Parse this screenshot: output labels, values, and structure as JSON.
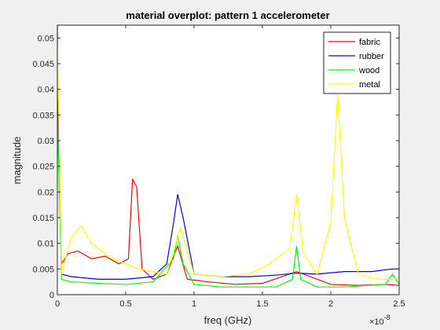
{
  "chart_data": {
    "type": "line",
    "title": "material overplot: pattern 1 accelerometer",
    "xlabel": "freq (GHz)",
    "ylabel": "magnitude",
    "x_exponent_label": "×10",
    "x_exponent": "-8",
    "xlim": [
      0,
      2.5e-08
    ],
    "ylim": [
      0,
      0.0525
    ],
    "x_ticks": [
      0,
      5e-09,
      1e-08,
      1.5e-08,
      2e-08,
      2.5e-08
    ],
    "x_tick_labels": [
      "0",
      "0.5",
      "1",
      "1.5",
      "2",
      "2.5"
    ],
    "y_ticks": [
      0,
      0.005,
      0.01,
      0.015,
      0.02,
      0.025,
      0.03,
      0.035,
      0.04,
      0.045,
      0.05
    ],
    "y_tick_labels": [
      "0",
      "0.005",
      "0.01",
      "0.015",
      "0.02",
      "0.025",
      "0.03",
      "0.035",
      "0.04",
      "0.045",
      "0.05"
    ],
    "grid": false,
    "legend_position": "top-right",
    "series": [
      {
        "name": "fabric",
        "color": "#ff0000",
        "x": [
          0,
          1e-13,
          3e-10,
          8e-10,
          1.5e-09,
          2.5e-09,
          3.5e-09,
          4.5e-09,
          5.2e-09,
          5.5e-09,
          5.8e-09,
          6.2e-09,
          7e-09,
          8e-09,
          8.8e-09,
          9.5e-09,
          1.1e-08,
          1.3e-08,
          1.5e-08,
          1.75e-08,
          2e-08,
          2.2e-08,
          2.4e-08,
          2.5e-08
        ],
        "values": [
          0.0525,
          0.04,
          0.006,
          0.008,
          0.0085,
          0.007,
          0.0075,
          0.006,
          0.007,
          0.0225,
          0.021,
          0.005,
          0.003,
          0.004,
          0.0095,
          0.003,
          0.0025,
          0.002,
          0.0022,
          0.0045,
          0.002,
          0.0018,
          0.002,
          0.0018
        ]
      },
      {
        "name": "rubber",
        "color": "#0000ff",
        "x": [
          0,
          1e-13,
          3e-10,
          1e-09,
          3e-09,
          5e-09,
          7e-09,
          8e-09,
          8.5e-09,
          8.8e-09,
          9.2e-09,
          1e-08,
          1.2e-08,
          1.4e-08,
          1.6e-08,
          1.75e-08,
          1.9e-08,
          2.1e-08,
          2.3e-08,
          2.45e-08,
          2.5e-08
        ],
        "values": [
          0.0525,
          0.045,
          0.004,
          0.0035,
          0.003,
          0.003,
          0.0035,
          0.006,
          0.014,
          0.0195,
          0.015,
          0.004,
          0.0035,
          0.0035,
          0.0038,
          0.0042,
          0.004,
          0.0045,
          0.0045,
          0.005,
          0.005
        ]
      },
      {
        "name": "wood",
        "color": "#00ff00",
        "x": [
          0,
          1e-13,
          3e-10,
          1e-09,
          3e-09,
          5e-09,
          7e-09,
          8.5e-09,
          8.8e-09,
          9.2e-09,
          1e-08,
          1.2e-08,
          1.4e-08,
          1.6e-08,
          1.72e-08,
          1.75e-08,
          1.78e-08,
          1.9e-08,
          2.1e-08,
          2.4e-08,
          2.45e-08,
          2.5e-08
        ],
        "values": [
          0.0525,
          0.035,
          0.003,
          0.0025,
          0.0022,
          0.002,
          0.0025,
          0.007,
          0.0115,
          0.006,
          0.002,
          0.0015,
          0.0015,
          0.0015,
          0.003,
          0.0095,
          0.003,
          0.0015,
          0.0015,
          0.002,
          0.004,
          0.002
        ]
      },
      {
        "name": "metal",
        "color": "#ffff00",
        "x": [
          0,
          1e-13,
          3e-10,
          1e-09,
          1.7e-09,
          2.5e-09,
          4e-09,
          6e-09,
          8e-09,
          9e-09,
          1e-08,
          1.2e-08,
          1.4e-08,
          1.55e-08,
          1.7e-08,
          1.75e-08,
          1.8e-08,
          1.9e-08,
          2e-08,
          2.05e-08,
          2.1e-08,
          2.2e-08,
          2.35e-08,
          2.5e-08
        ],
        "values": [
          0.0525,
          0.05,
          0.004,
          0.011,
          0.0135,
          0.01,
          0.007,
          0.005,
          0.004,
          0.013,
          0.004,
          0.0035,
          0.004,
          0.006,
          0.009,
          0.0195,
          0.008,
          0.004,
          0.014,
          0.039,
          0.015,
          0.004,
          0.003,
          0.003
        ]
      }
    ]
  }
}
